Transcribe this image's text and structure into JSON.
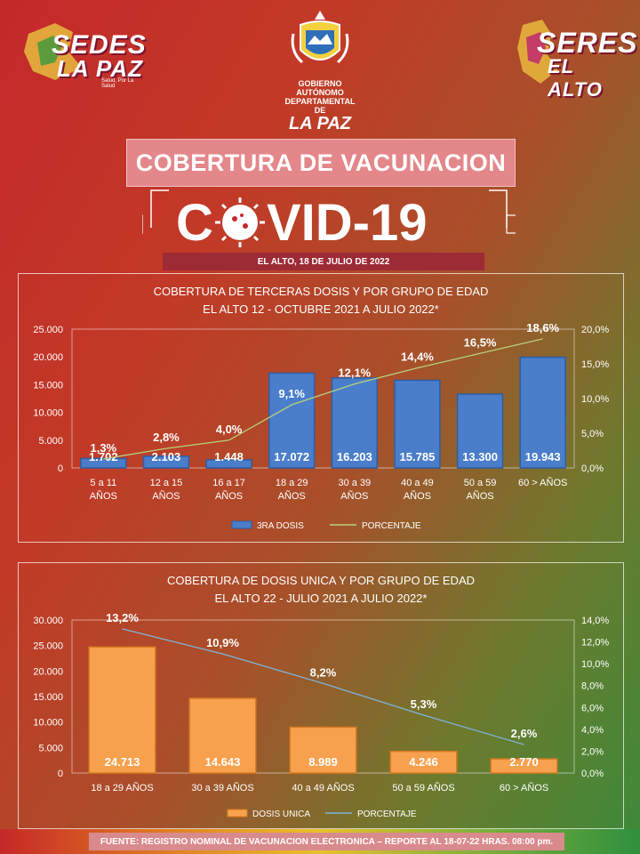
{
  "header": {
    "logo_left": {
      "line1": "SEDES",
      "line2": "LA PAZ",
      "tagline": "Salud, Por La Salud"
    },
    "logo_right": {
      "line1": "SERES",
      "line2": "EL ALTO"
    },
    "logo_center": {
      "line1": "GOBIERNO AUTÓNOMO",
      "line2": "DEPARTAMENTAL DE",
      "line3": "LA PAZ"
    },
    "title": "COBERTURA DE VACUNACION",
    "covid_prefix": "C",
    "covid_suffix": "VID-19",
    "date": "EL ALTO, 18 DE JULIO DE 2022"
  },
  "footer": {
    "text": "FUENTE: REGISTRO NOMINAL DE VACUNACION ELECTRONICA – REPORTE AL 18-07-22 HRAS. 08:00 pm."
  },
  "colors": {
    "bar_blue": "#4a7ecb",
    "bar_orange": "#f7a14e",
    "line_green": "#b6d27a",
    "line_blue": "#7fb3d9"
  },
  "chart_data": [
    {
      "type": "bar",
      "title_line1": "COBERTURA DE TERCERAS DOSIS  Y POR GRUPO DE EDAD",
      "title_line2": "EL ALTO 12 - OCTUBRE 2021 A JULIO 2022*",
      "categories": [
        [
          "5 a 11",
          "AÑOS"
        ],
        [
          "12 a 15",
          "AÑOS"
        ],
        [
          "16 a 17",
          "AÑOS"
        ],
        [
          "18 a 29",
          "AÑOS"
        ],
        [
          "30 a 39",
          "AÑOS"
        ],
        [
          "40 a 49",
          "AÑOS"
        ],
        [
          "50 a 59",
          "AÑOS"
        ],
        [
          "60 > AÑOS"
        ]
      ],
      "series": [
        {
          "name": "3RA DOSIS",
          "kind": "bar",
          "axis": "left",
          "values": [
            1702,
            2103,
            1448,
            17072,
            16203,
            15785,
            13300,
            19943
          ],
          "labels": [
            "1.702",
            "2.103",
            "1.448",
            "17.072",
            "16.203",
            "15.785",
            "13.300",
            "19.943"
          ]
        },
        {
          "name": "PORCENTAJE",
          "kind": "line",
          "axis": "right",
          "values": [
            1.3,
            2.8,
            4.0,
            9.1,
            12.1,
            14.4,
            16.5,
            18.6
          ],
          "labels": [
            "1,3%",
            "2,8%",
            "4,0%",
            "9,1%",
            "12,1%",
            "14,4%",
            "16,5%",
            "18,6%"
          ]
        }
      ],
      "ylim_left": [
        0,
        25000
      ],
      "yticks_left": [
        "0",
        "5.000",
        "10.000",
        "15.000",
        "20.000",
        "25.000"
      ],
      "ylim_right": [
        0,
        20
      ],
      "yticks_right": [
        "0,0%",
        "5,0%",
        "10,0%",
        "15,0%",
        "20,0%"
      ],
      "legend": "bottom"
    },
    {
      "type": "bar",
      "title_line1": "COBERTURA DE DOSIS UNICA  Y POR GRUPO DE EDAD",
      "title_line2": "EL ALTO 22 - JULIO 2021 A  JULIO 2022*",
      "categories": [
        [
          "18 a 29 AÑOS"
        ],
        [
          "30 a 39 AÑOS"
        ],
        [
          "40 a 49 AÑOS"
        ],
        [
          "50 a 59 AÑOS"
        ],
        [
          "60 > AÑOS"
        ]
      ],
      "series": [
        {
          "name": "DOSIS UNICA",
          "kind": "bar",
          "axis": "left",
          "values": [
            24713,
            14643,
            8989,
            4246,
            2770
          ],
          "labels": [
            "24.713",
            "14.643",
            "8.989",
            "4.246",
            "2.770"
          ]
        },
        {
          "name": "PORCENTAJE",
          "kind": "line",
          "axis": "right",
          "values": [
            13.2,
            10.9,
            8.2,
            5.3,
            2.6
          ],
          "labels": [
            "13,2%",
            "10,9%",
            "8,2%",
            "5,3%",
            "2,6%"
          ]
        }
      ],
      "ylim_left": [
        0,
        30000
      ],
      "yticks_left": [
        "0",
        "5.000",
        "10.000",
        "15.000",
        "20.000",
        "25.000",
        "30.000"
      ],
      "ylim_right": [
        0,
        14
      ],
      "yticks_right": [
        "0,0%",
        "2,0%",
        "4,0%",
        "6,0%",
        "8,0%",
        "10,0%",
        "12,0%",
        "14,0%"
      ],
      "legend": "bottom"
    }
  ]
}
